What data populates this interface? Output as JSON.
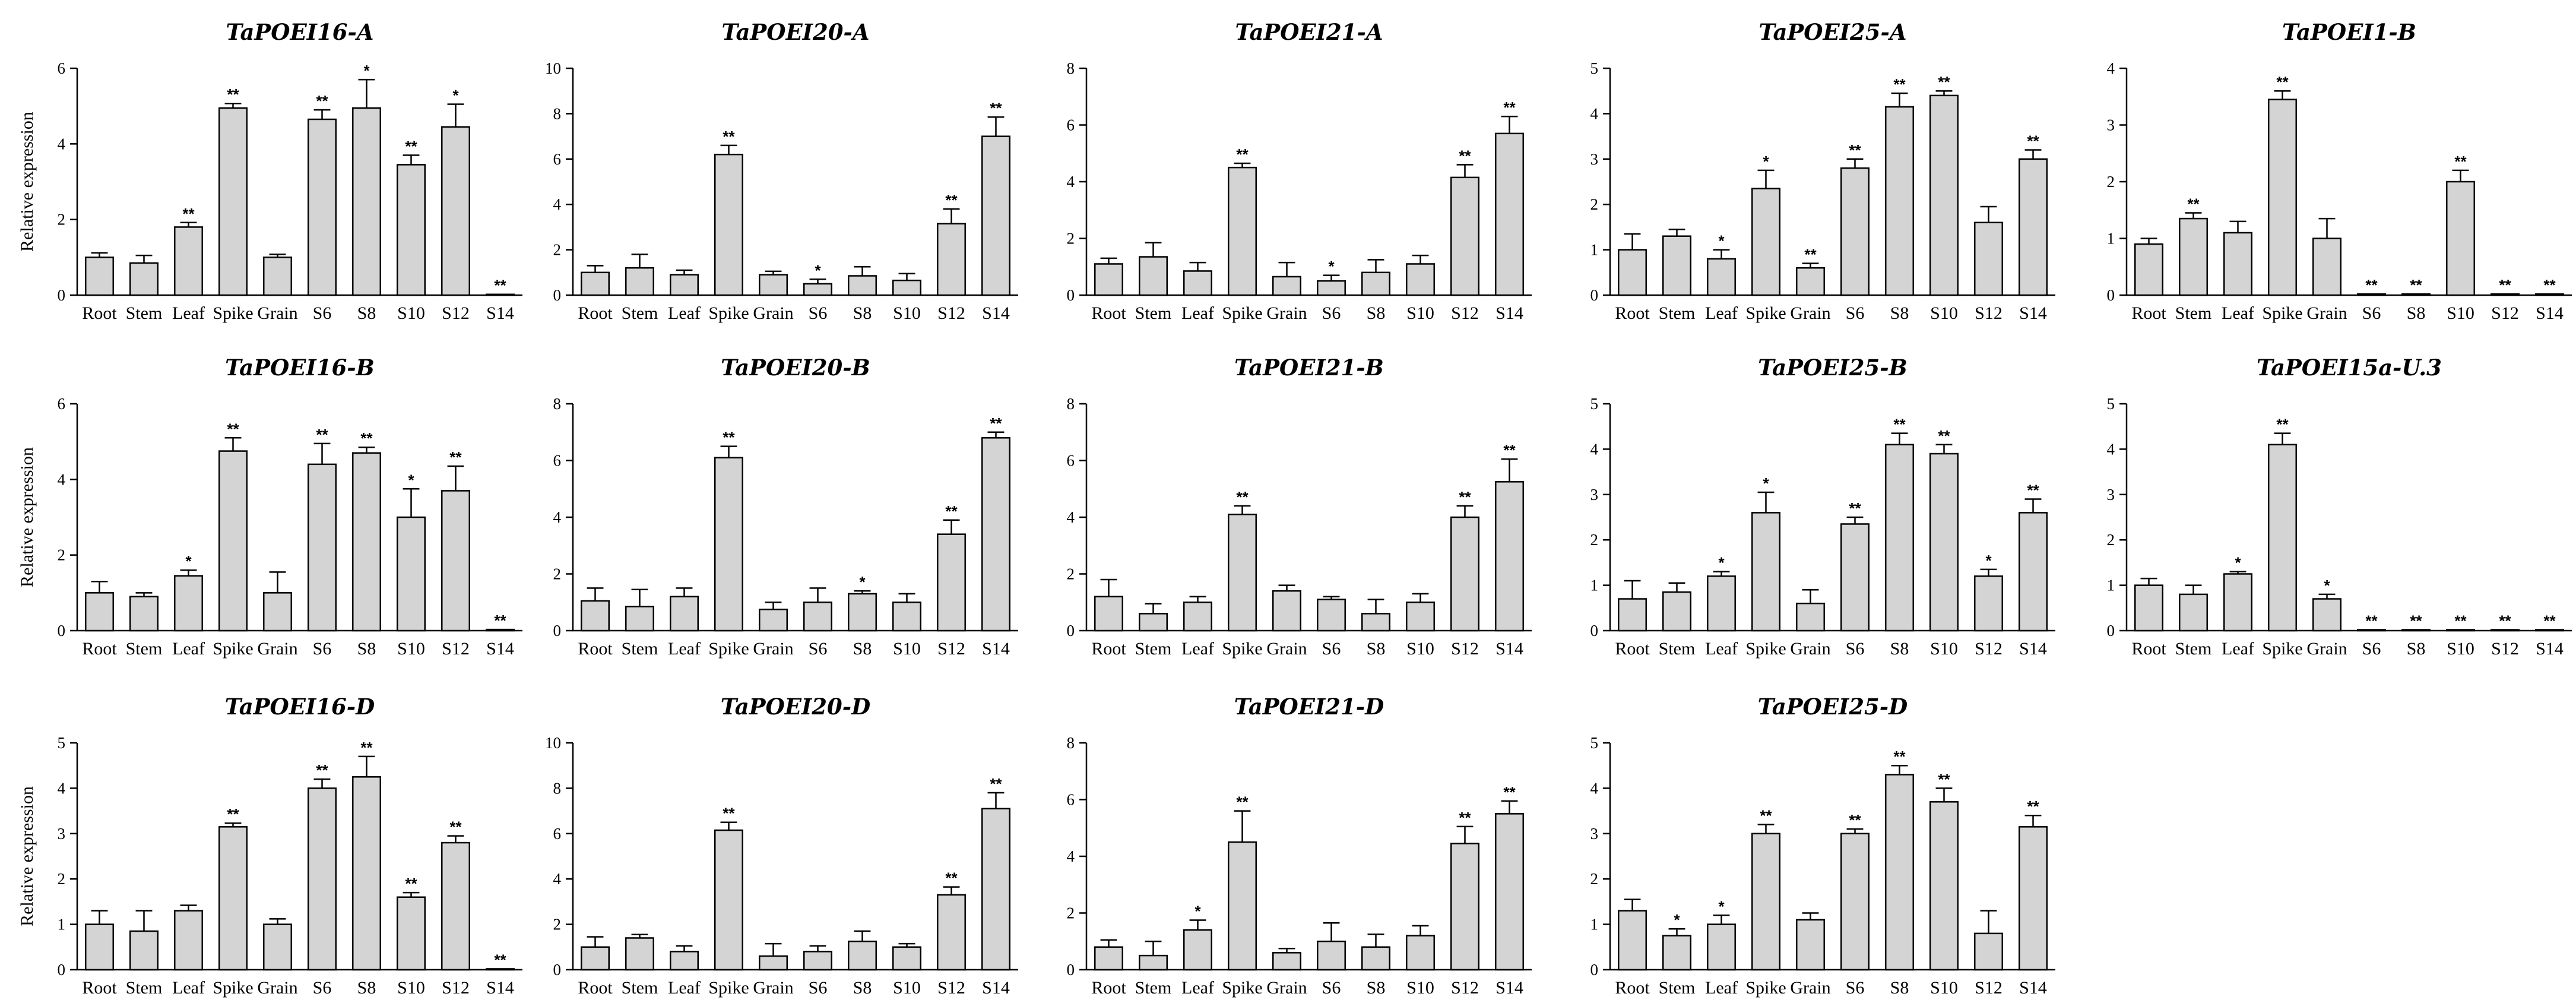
{
  "categories": [
    "Root",
    "Stem",
    "Leaf",
    "Spike",
    "Grain",
    "S6",
    "S8",
    "S10",
    "S12",
    "S14"
  ],
  "ylabel": "Relative expression",
  "chart_data": [
    {
      "type": "bar",
      "title": "TaPOEI16-A",
      "ylabel": "Relative expression",
      "ylim": [
        0,
        6
      ],
      "yticks": [
        "0",
        "2",
        "4",
        "6"
      ],
      "values": [
        1.0,
        0.85,
        1.8,
        4.95,
        1.0,
        4.65,
        4.95,
        3.45,
        4.45,
        0.02
      ],
      "errors": [
        0.12,
        0.2,
        0.12,
        0.12,
        0.08,
        0.25,
        0.75,
        0.25,
        0.6,
        0.0
      ],
      "sig": [
        "",
        "",
        "**",
        "**",
        "",
        "**",
        "*",
        "**",
        "*",
        "**"
      ]
    },
    {
      "type": "bar",
      "title": "TaPOEI20-A",
      "ylabel": "",
      "ylim": [
        0,
        10
      ],
      "yticks": [
        "0",
        "2",
        "4",
        "6",
        "8",
        "10"
      ],
      "values": [
        1.0,
        1.2,
        0.9,
        6.2,
        0.9,
        0.5,
        0.85,
        0.65,
        3.15,
        7.0
      ],
      "errors": [
        0.3,
        0.6,
        0.2,
        0.4,
        0.15,
        0.2,
        0.4,
        0.3,
        0.65,
        0.85
      ],
      "sig": [
        "",
        "",
        "",
        "**",
        "",
        "*",
        "",
        "",
        "**",
        "**"
      ]
    },
    {
      "type": "bar",
      "title": "TaPOEI21-A",
      "ylabel": "",
      "ylim": [
        0,
        8
      ],
      "yticks": [
        "0",
        "2",
        "4",
        "6",
        "8"
      ],
      "values": [
        1.1,
        1.35,
        0.85,
        4.5,
        0.65,
        0.5,
        0.8,
        1.1,
        4.15,
        5.7
      ],
      "errors": [
        0.2,
        0.5,
        0.3,
        0.15,
        0.5,
        0.2,
        0.45,
        0.3,
        0.45,
        0.6
      ],
      "sig": [
        "",
        "",
        "",
        "**",
        "",
        "*",
        "",
        "",
        "**",
        "**"
      ]
    },
    {
      "type": "bar",
      "title": "TaPOEI25-A",
      "ylabel": "",
      "ylim": [
        0,
        5
      ],
      "yticks": [
        "0",
        "1",
        "2",
        "3",
        "4",
        "5"
      ],
      "values": [
        1.0,
        1.3,
        0.8,
        2.35,
        0.6,
        2.8,
        4.15,
        4.4,
        1.6,
        3.0
      ],
      "errors": [
        0.35,
        0.15,
        0.2,
        0.4,
        0.1,
        0.2,
        0.3,
        0.1,
        0.35,
        0.2
      ],
      "sig": [
        "",
        "",
        "*",
        "*",
        "**",
        "**",
        "**",
        "**",
        "",
        "**"
      ]
    },
    {
      "type": "bar",
      "title": "TaPOEI1-B",
      "ylabel": "",
      "ylim": [
        0,
        4
      ],
      "yticks": [
        "0",
        "1",
        "2",
        "3",
        "4"
      ],
      "values": [
        0.9,
        1.35,
        1.1,
        3.45,
        1.0,
        0.02,
        0.02,
        2.0,
        0.02,
        0.02
      ],
      "errors": [
        0.1,
        0.1,
        0.2,
        0.15,
        0.35,
        0.0,
        0.0,
        0.2,
        0.0,
        0.0
      ],
      "sig": [
        "",
        "**",
        "",
        "**",
        "",
        "**",
        "**",
        "**",
        "**",
        "**"
      ]
    },
    {
      "type": "bar",
      "title": "TaPOEI16-B",
      "ylabel": "Relative expression",
      "ylim": [
        0,
        6
      ],
      "yticks": [
        "0",
        "2",
        "4",
        "6"
      ],
      "values": [
        1.0,
        0.9,
        1.45,
        4.75,
        1.0,
        4.4,
        4.7,
        3.0,
        3.7,
        0.03
      ],
      "errors": [
        0.3,
        0.1,
        0.15,
        0.35,
        0.55,
        0.55,
        0.15,
        0.75,
        0.65,
        0.0
      ],
      "sig": [
        "",
        "",
        "*",
        "**",
        "",
        "**",
        "**",
        "*",
        "**",
        "**"
      ]
    },
    {
      "type": "bar",
      "title": "TaPOEI20-B",
      "ylabel": "",
      "ylim": [
        0,
        8
      ],
      "yticks": [
        "0",
        "2",
        "4",
        "6",
        "8"
      ],
      "values": [
        1.05,
        0.85,
        1.2,
        6.1,
        0.75,
        1.0,
        1.3,
        1.0,
        3.4,
        6.8
      ],
      "errors": [
        0.45,
        0.6,
        0.3,
        0.4,
        0.25,
        0.5,
        0.1,
        0.3,
        0.5,
        0.2
      ],
      "sig": [
        "",
        "",
        "",
        "**",
        "",
        "",
        "*",
        "",
        "**",
        "**"
      ]
    },
    {
      "type": "bar",
      "title": "TaPOEI21-B",
      "ylabel": "",
      "ylim": [
        0,
        8
      ],
      "yticks": [
        "0",
        "2",
        "4",
        "6",
        "8"
      ],
      "values": [
        1.2,
        0.6,
        1.0,
        4.1,
        1.4,
        1.1,
        0.6,
        1.0,
        4.0,
        5.25
      ],
      "errors": [
        0.6,
        0.35,
        0.2,
        0.3,
        0.2,
        0.1,
        0.5,
        0.3,
        0.4,
        0.8
      ],
      "sig": [
        "",
        "",
        "",
        "**",
        "",
        "",
        "",
        "",
        "**",
        "**"
      ]
    },
    {
      "type": "bar",
      "title": "TaPOEI25-B",
      "ylabel": "",
      "ylim": [
        0,
        5
      ],
      "yticks": [
        "0",
        "1",
        "2",
        "3",
        "4",
        "5"
      ],
      "values": [
        0.7,
        0.85,
        1.2,
        2.6,
        0.6,
        2.35,
        4.1,
        3.9,
        1.2,
        2.6
      ],
      "errors": [
        0.4,
        0.2,
        0.1,
        0.45,
        0.3,
        0.15,
        0.25,
        0.2,
        0.15,
        0.3
      ],
      "sig": [
        "",
        "",
        "*",
        "*",
        "",
        "**",
        "**",
        "**",
        "*",
        "**"
      ]
    },
    {
      "type": "bar",
      "title": "TaPOEI15a-U.3",
      "ylabel": "",
      "ylim": [
        0,
        5
      ],
      "yticks": [
        "0",
        "1",
        "2",
        "3",
        "4",
        "5"
      ],
      "values": [
        1.0,
        0.8,
        1.25,
        4.1,
        0.7,
        0.02,
        0.02,
        0.02,
        0.02,
        0.02
      ],
      "errors": [
        0.15,
        0.2,
        0.05,
        0.25,
        0.1,
        0.0,
        0.0,
        0.0,
        0.0,
        0.0
      ],
      "sig": [
        "",
        "",
        "*",
        "**",
        "*",
        "**",
        "**",
        "**",
        "**",
        "**"
      ]
    },
    {
      "type": "bar",
      "title": "TaPOEI16-D",
      "ylabel": "Relative expression",
      "ylim": [
        0,
        5
      ],
      "yticks": [
        "0",
        "1",
        "2",
        "3",
        "4",
        "5"
      ],
      "values": [
        1.0,
        0.85,
        1.3,
        3.15,
        1.0,
        4.0,
        4.25,
        1.6,
        2.8,
        0.02
      ],
      "errors": [
        0.3,
        0.45,
        0.12,
        0.08,
        0.12,
        0.2,
        0.45,
        0.1,
        0.15,
        0.0
      ],
      "sig": [
        "",
        "",
        "",
        "**",
        "",
        "**",
        "**",
        "**",
        "**",
        "**"
      ]
    },
    {
      "type": "bar",
      "title": "TaPOEI20-D",
      "ylabel": "",
      "ylim": [
        0,
        10
      ],
      "yticks": [
        "0",
        "2",
        "4",
        "6",
        "8",
        "10"
      ],
      "values": [
        1.0,
        1.4,
        0.8,
        6.15,
        0.6,
        0.8,
        1.25,
        1.0,
        3.3,
        7.1
      ],
      "errors": [
        0.45,
        0.15,
        0.25,
        0.35,
        0.55,
        0.25,
        0.45,
        0.15,
        0.35,
        0.7
      ],
      "sig": [
        "",
        "",
        "",
        "**",
        "",
        "",
        "",
        "",
        "**",
        "**"
      ]
    },
    {
      "type": "bar",
      "title": "TaPOEI21-D",
      "ylabel": "",
      "ylim": [
        0,
        8
      ],
      "yticks": [
        "0",
        "2",
        "4",
        "6",
        "8"
      ],
      "values": [
        0.8,
        0.5,
        1.4,
        4.5,
        0.6,
        1.0,
        0.8,
        1.2,
        4.45,
        5.5
      ],
      "errors": [
        0.25,
        0.5,
        0.35,
        1.1,
        0.15,
        0.65,
        0.45,
        0.35,
        0.6,
        0.45
      ],
      "sig": [
        "",
        "",
        "*",
        "**",
        "",
        "",
        "",
        "",
        "**",
        "**"
      ]
    },
    {
      "type": "bar",
      "title": "TaPOEI25-D",
      "ylabel": "",
      "ylim": [
        0,
        5
      ],
      "yticks": [
        "0",
        "1",
        "2",
        "3",
        "4",
        "5"
      ],
      "values": [
        1.3,
        0.75,
        1.0,
        3.0,
        1.1,
        3.0,
        4.3,
        3.7,
        0.8,
        3.15
      ],
      "errors": [
        0.25,
        0.15,
        0.2,
        0.2,
        0.15,
        0.1,
        0.2,
        0.3,
        0.5,
        0.25
      ],
      "sig": [
        "",
        "*",
        "*",
        "**",
        "",
        "**",
        "**",
        "**",
        "",
        "**"
      ]
    }
  ]
}
